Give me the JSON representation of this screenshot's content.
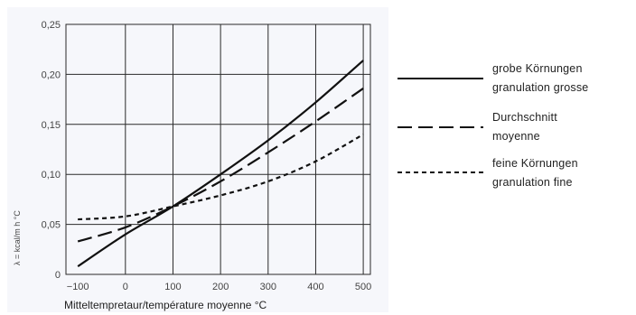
{
  "chart_data": {
    "type": "line",
    "title": "",
    "xlabel": "Mitteltempretaur/température moyenne °C",
    "ylabel": "λ = kcal/m h °C",
    "xlim": [
      -125,
      515
    ],
    "ylim": [
      0,
      0.25
    ],
    "x_ticks": [
      "−100",
      "0",
      "100",
      "200",
      "300",
      "400",
      "500"
    ],
    "y_ticks": [
      "0",
      "0,05",
      "0,10",
      "0,15",
      "0,20",
      "0,25"
    ],
    "grid": true,
    "legend_position": "right",
    "series": [
      {
        "name_line1": "grobe Körnungen",
        "name_line2": "granulation grosse",
        "style": "solid",
        "x": [
          -100,
          0,
          100,
          200,
          300,
          400,
          500
        ],
        "y": [
          0.008,
          0.04,
          0.068,
          0.1,
          0.134,
          0.172,
          0.214
        ]
      },
      {
        "name_line1": "Durchschnitt",
        "name_line2": "moyenne",
        "style": "long-dash",
        "x": [
          -100,
          0,
          100,
          200,
          300,
          400,
          500
        ],
        "y": [
          0.033,
          0.047,
          0.068,
          0.093,
          0.122,
          0.153,
          0.186
        ]
      },
      {
        "name_line1": "feine Körnungen",
        "name_line2": "granulation fine",
        "style": "short-dash",
        "x": [
          -100,
          0,
          100,
          200,
          300,
          400,
          500
        ],
        "y": [
          0.055,
          0.058,
          0.068,
          0.079,
          0.093,
          0.113,
          0.14
        ]
      }
    ]
  }
}
